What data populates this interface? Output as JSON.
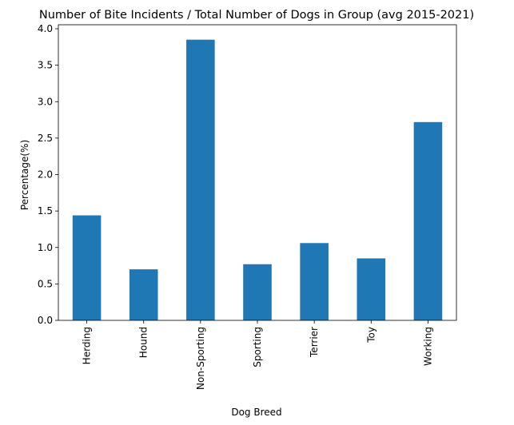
{
  "chart_data": {
    "type": "bar",
    "title": "Number of Bite Incidents / Total Number of Dogs in Group (avg 2015-2021)",
    "xlabel": "Dog Breed",
    "ylabel": "Percentage(%)",
    "categories": [
      "Herding",
      "Hound",
      "Non-Sporting",
      "Sporting",
      "Terrier",
      "Toy",
      "Working"
    ],
    "values": [
      1.44,
      0.7,
      3.85,
      0.77,
      1.06,
      0.85,
      2.72
    ],
    "ylim": [
      0,
      4.0
    ],
    "yticks": [
      "0.0",
      "0.5",
      "1.0",
      "1.5",
      "2.0",
      "2.5",
      "3.0",
      "3.5",
      "4.0"
    ],
    "grid": false,
    "legend": "none",
    "bar_color": "#1f77b4"
  }
}
